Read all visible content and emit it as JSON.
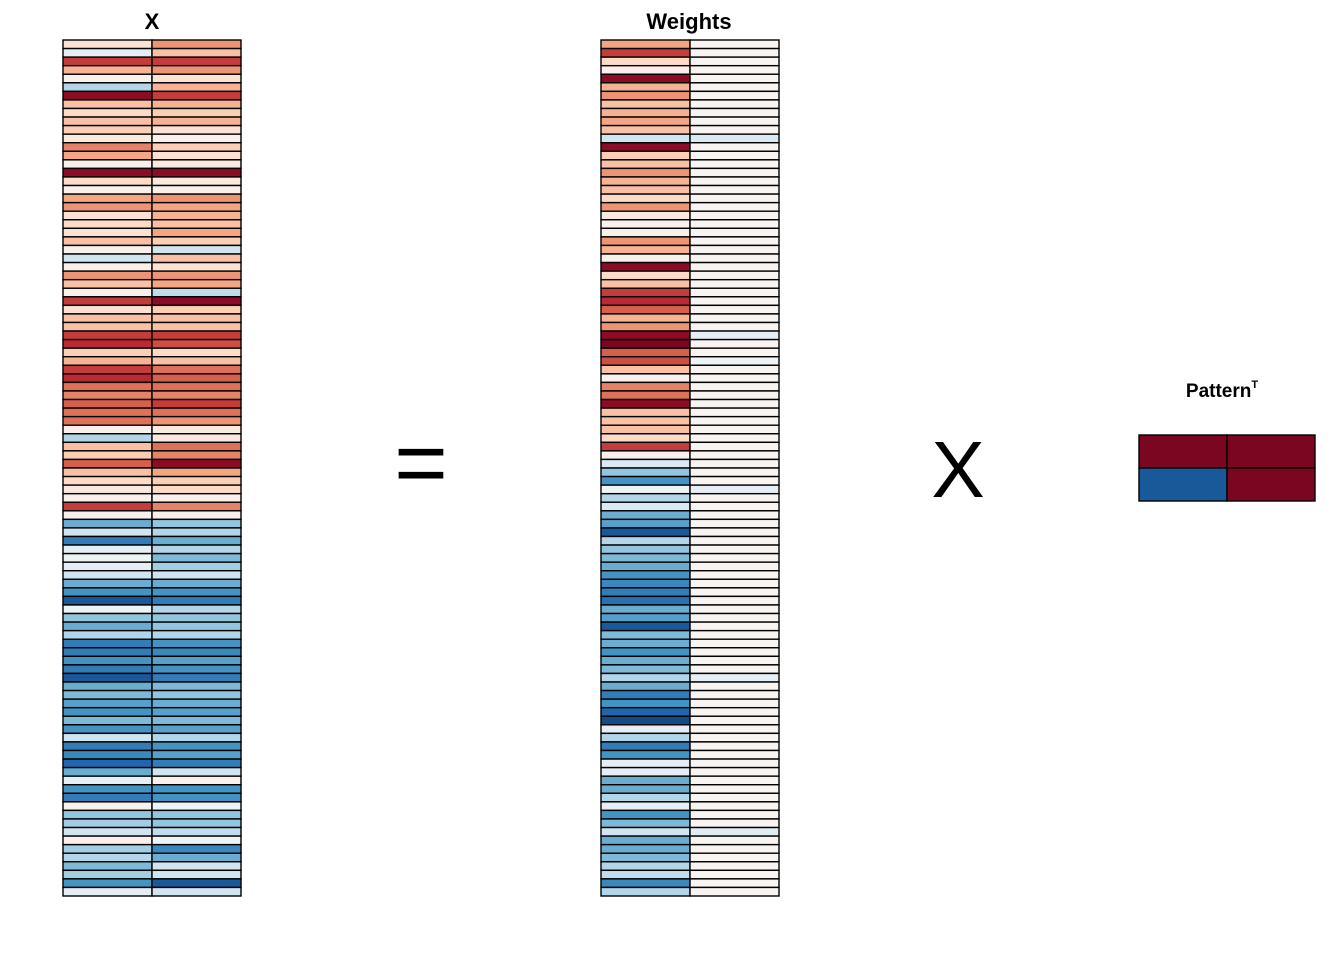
{
  "chart_data": {
    "type": "heatmap",
    "equation": {
      "equals": "=",
      "times": "X"
    },
    "color_scale": {
      "palette": [
        "#053061",
        "#2166ac",
        "#4393c3",
        "#92c5de",
        "#d1e5f0",
        "#f7f7f7",
        "#fddbc7",
        "#f4a582",
        "#d6604d",
        "#b2182b",
        "#67001f"
      ],
      "range": [
        -1,
        1
      ]
    },
    "panels": [
      {
        "id": "x",
        "title": "X",
        "title_sup": "",
        "rows": 100,
        "cols": 2,
        "values": [
          [
            0.15,
            0.45
          ],
          [
            -0.1,
            0.3
          ],
          [
            0.7,
            0.7
          ],
          [
            0.35,
            0.45
          ],
          [
            0.05,
            0.15
          ],
          [
            -0.3,
            0.35
          ],
          [
            0.9,
            0.7
          ],
          [
            0.3,
            0.35
          ],
          [
            0.2,
            0.25
          ],
          [
            0.3,
            0.35
          ],
          [
            0.25,
            0.15
          ],
          [
            0.1,
            0.05
          ],
          [
            0.5,
            0.25
          ],
          [
            0.4,
            0.15
          ],
          [
            0.05,
            0.1
          ],
          [
            0.9,
            0.9
          ],
          [
            0.2,
            0.1
          ],
          [
            0.05,
            0.05
          ],
          [
            0.4,
            0.45
          ],
          [
            0.45,
            0.4
          ],
          [
            0.15,
            0.35
          ],
          [
            0.2,
            0.3
          ],
          [
            0.15,
            0.4
          ],
          [
            0.3,
            0.25
          ],
          [
            0.05,
            -0.2
          ],
          [
            -0.2,
            0.3
          ],
          [
            0.05,
            0.15
          ],
          [
            0.45,
            0.45
          ],
          [
            0.3,
            0.4
          ],
          [
            0.05,
            -0.25
          ],
          [
            0.7,
            0.9
          ],
          [
            0.15,
            0.25
          ],
          [
            0.3,
            0.3
          ],
          [
            0.3,
            0.3
          ],
          [
            0.7,
            0.7
          ],
          [
            0.75,
            0.65
          ],
          [
            0.25,
            0.2
          ],
          [
            0.35,
            0.3
          ],
          [
            0.7,
            0.55
          ],
          [
            0.75,
            0.6
          ],
          [
            0.55,
            0.55
          ],
          [
            0.5,
            0.5
          ],
          [
            0.6,
            0.7
          ],
          [
            0.55,
            0.55
          ],
          [
            0.55,
            0.45
          ],
          [
            0.05,
            0.1
          ],
          [
            -0.3,
            0.1
          ],
          [
            0.3,
            0.55
          ],
          [
            0.25,
            0.5
          ],
          [
            0.6,
            0.9
          ],
          [
            0.3,
            0.4
          ],
          [
            0.2,
            0.25
          ],
          [
            0.1,
            0.2
          ],
          [
            0.05,
            0.05
          ],
          [
            0.7,
            0.5
          ],
          [
            0.05,
            0.05
          ],
          [
            -0.5,
            -0.4
          ],
          [
            -0.2,
            -0.3
          ],
          [
            -0.7,
            -0.5
          ],
          [
            -0.1,
            -0.3
          ],
          [
            -0.05,
            -0.45
          ],
          [
            -0.1,
            -0.35
          ],
          [
            -0.2,
            -0.2
          ],
          [
            -0.5,
            -0.5
          ],
          [
            -0.6,
            -0.6
          ],
          [
            -0.85,
            -0.7
          ],
          [
            -0.05,
            -0.3
          ],
          [
            -0.4,
            -0.4
          ],
          [
            -0.5,
            -0.4
          ],
          [
            -0.3,
            -0.3
          ],
          [
            -0.7,
            -0.6
          ],
          [
            -0.7,
            -0.65
          ],
          [
            -0.6,
            -0.55
          ],
          [
            -0.7,
            -0.6
          ],
          [
            -0.85,
            -0.7
          ],
          [
            -0.5,
            -0.45
          ],
          [
            -0.45,
            -0.4
          ],
          [
            -0.55,
            -0.5
          ],
          [
            -0.6,
            -0.55
          ],
          [
            -0.45,
            -0.45
          ],
          [
            -0.6,
            -0.55
          ],
          [
            -0.2,
            -0.3
          ],
          [
            -0.7,
            -0.6
          ],
          [
            -0.65,
            -0.55
          ],
          [
            -0.8,
            -0.7
          ],
          [
            -0.5,
            -0.2
          ],
          [
            -0.1,
            0.05
          ],
          [
            -0.6,
            -0.6
          ],
          [
            -0.7,
            -0.6
          ],
          [
            0.05,
            -0.05
          ],
          [
            -0.4,
            -0.4
          ],
          [
            -0.35,
            -0.4
          ],
          [
            -0.2,
            -0.25
          ],
          [
            0.05,
            -0.05
          ],
          [
            -0.35,
            -0.65
          ],
          [
            -0.3,
            -0.5
          ],
          [
            -0.45,
            -0.2
          ],
          [
            -0.35,
            -0.2
          ],
          [
            -0.6,
            -0.85
          ],
          [
            -0.1,
            -0.2
          ]
        ]
      },
      {
        "id": "weights",
        "title": "Weights",
        "title_sup": "",
        "rows": 100,
        "cols": 2,
        "values": [
          [
            0.4,
            0.02
          ],
          [
            0.7,
            0.02
          ],
          [
            0.2,
            0.02
          ],
          [
            0.05,
            0.02
          ],
          [
            0.9,
            0.02
          ],
          [
            0.35,
            0.02
          ],
          [
            0.45,
            0.02
          ],
          [
            0.3,
            0.02
          ],
          [
            0.35,
            0.02
          ],
          [
            0.4,
            0.02
          ],
          [
            0.3,
            0.02
          ],
          [
            -0.2,
            -0.15
          ],
          [
            0.9,
            0.02
          ],
          [
            0.25,
            0.02
          ],
          [
            0.3,
            0.02
          ],
          [
            0.45,
            0.02
          ],
          [
            0.35,
            0.02
          ],
          [
            0.3,
            0.02
          ],
          [
            0.2,
            0.02
          ],
          [
            0.45,
            0.02
          ],
          [
            0.1,
            0.02
          ],
          [
            0.05,
            0.02
          ],
          [
            0.05,
            0.02
          ],
          [
            0.45,
            0.02
          ],
          [
            0.35,
            0.02
          ],
          [
            0.05,
            0.02
          ],
          [
            0.9,
            0.02
          ],
          [
            0.2,
            0.02
          ],
          [
            0.3,
            0.02
          ],
          [
            0.7,
            0.02
          ],
          [
            0.75,
            0.02
          ],
          [
            0.6,
            0.02
          ],
          [
            0.35,
            0.02
          ],
          [
            0.45,
            0.02
          ],
          [
            0.9,
            -0.1
          ],
          [
            0.95,
            0.02
          ],
          [
            0.6,
            0.02
          ],
          [
            0.65,
            -0.05
          ],
          [
            0.3,
            0.02
          ],
          [
            0.05,
            0.02
          ],
          [
            0.5,
            0.02
          ],
          [
            0.55,
            0.02
          ],
          [
            0.9,
            0.02
          ],
          [
            0.3,
            0.02
          ],
          [
            0.3,
            0.02
          ],
          [
            0.3,
            0.02
          ],
          [
            0.2,
            0.02
          ],
          [
            0.7,
            0.02
          ],
          [
            0.05,
            0.02
          ],
          [
            -0.15,
            0.02
          ],
          [
            -0.4,
            0.02
          ],
          [
            -0.6,
            0.02
          ],
          [
            -0.05,
            -0.1
          ],
          [
            -0.3,
            0.02
          ],
          [
            -0.15,
            0.02
          ],
          [
            -0.5,
            0.02
          ],
          [
            -0.55,
            0.02
          ],
          [
            -0.85,
            0.02
          ],
          [
            -0.3,
            0.02
          ],
          [
            -0.4,
            0.02
          ],
          [
            -0.45,
            0.02
          ],
          [
            -0.5,
            0.02
          ],
          [
            -0.6,
            0.02
          ],
          [
            -0.65,
            0.02
          ],
          [
            -0.7,
            0.02
          ],
          [
            -0.75,
            0.02
          ],
          [
            -0.5,
            0.02
          ],
          [
            -0.55,
            0.02
          ],
          [
            -0.85,
            0.02
          ],
          [
            -0.45,
            0.02
          ],
          [
            -0.5,
            0.02
          ],
          [
            -0.6,
            0.02
          ],
          [
            -0.5,
            0.02
          ],
          [
            -0.45,
            0.02
          ],
          [
            -0.3,
            -0.1
          ],
          [
            -0.5,
            0.02
          ],
          [
            -0.7,
            0.02
          ],
          [
            -0.6,
            0.02
          ],
          [
            -0.8,
            0.02
          ],
          [
            -0.9,
            0.02
          ],
          [
            -0.1,
            0.02
          ],
          [
            -0.3,
            0.02
          ],
          [
            -0.7,
            0.02
          ],
          [
            -0.6,
            0.02
          ],
          [
            -0.1,
            0.02
          ],
          [
            -0.1,
            0.02
          ],
          [
            -0.5,
            0.02
          ],
          [
            -0.5,
            0.02
          ],
          [
            -0.3,
            0.02
          ],
          [
            -0.1,
            0.02
          ],
          [
            -0.6,
            0.02
          ],
          [
            -0.45,
            0.02
          ],
          [
            -0.2,
            -0.12
          ],
          [
            -0.5,
            0.02
          ],
          [
            -0.5,
            0.02
          ],
          [
            -0.45,
            0.02
          ],
          [
            -0.3,
            0.02
          ],
          [
            -0.25,
            0.02
          ],
          [
            -0.65,
            0.02
          ],
          [
            -0.3,
            0.02
          ]
        ]
      },
      {
        "id": "pattern",
        "title": "Pattern",
        "title_sup": "T",
        "rows": 2,
        "cols": 2,
        "values": [
          [
            0.95,
            0.95
          ],
          [
            -0.85,
            0.95
          ]
        ]
      }
    ]
  }
}
